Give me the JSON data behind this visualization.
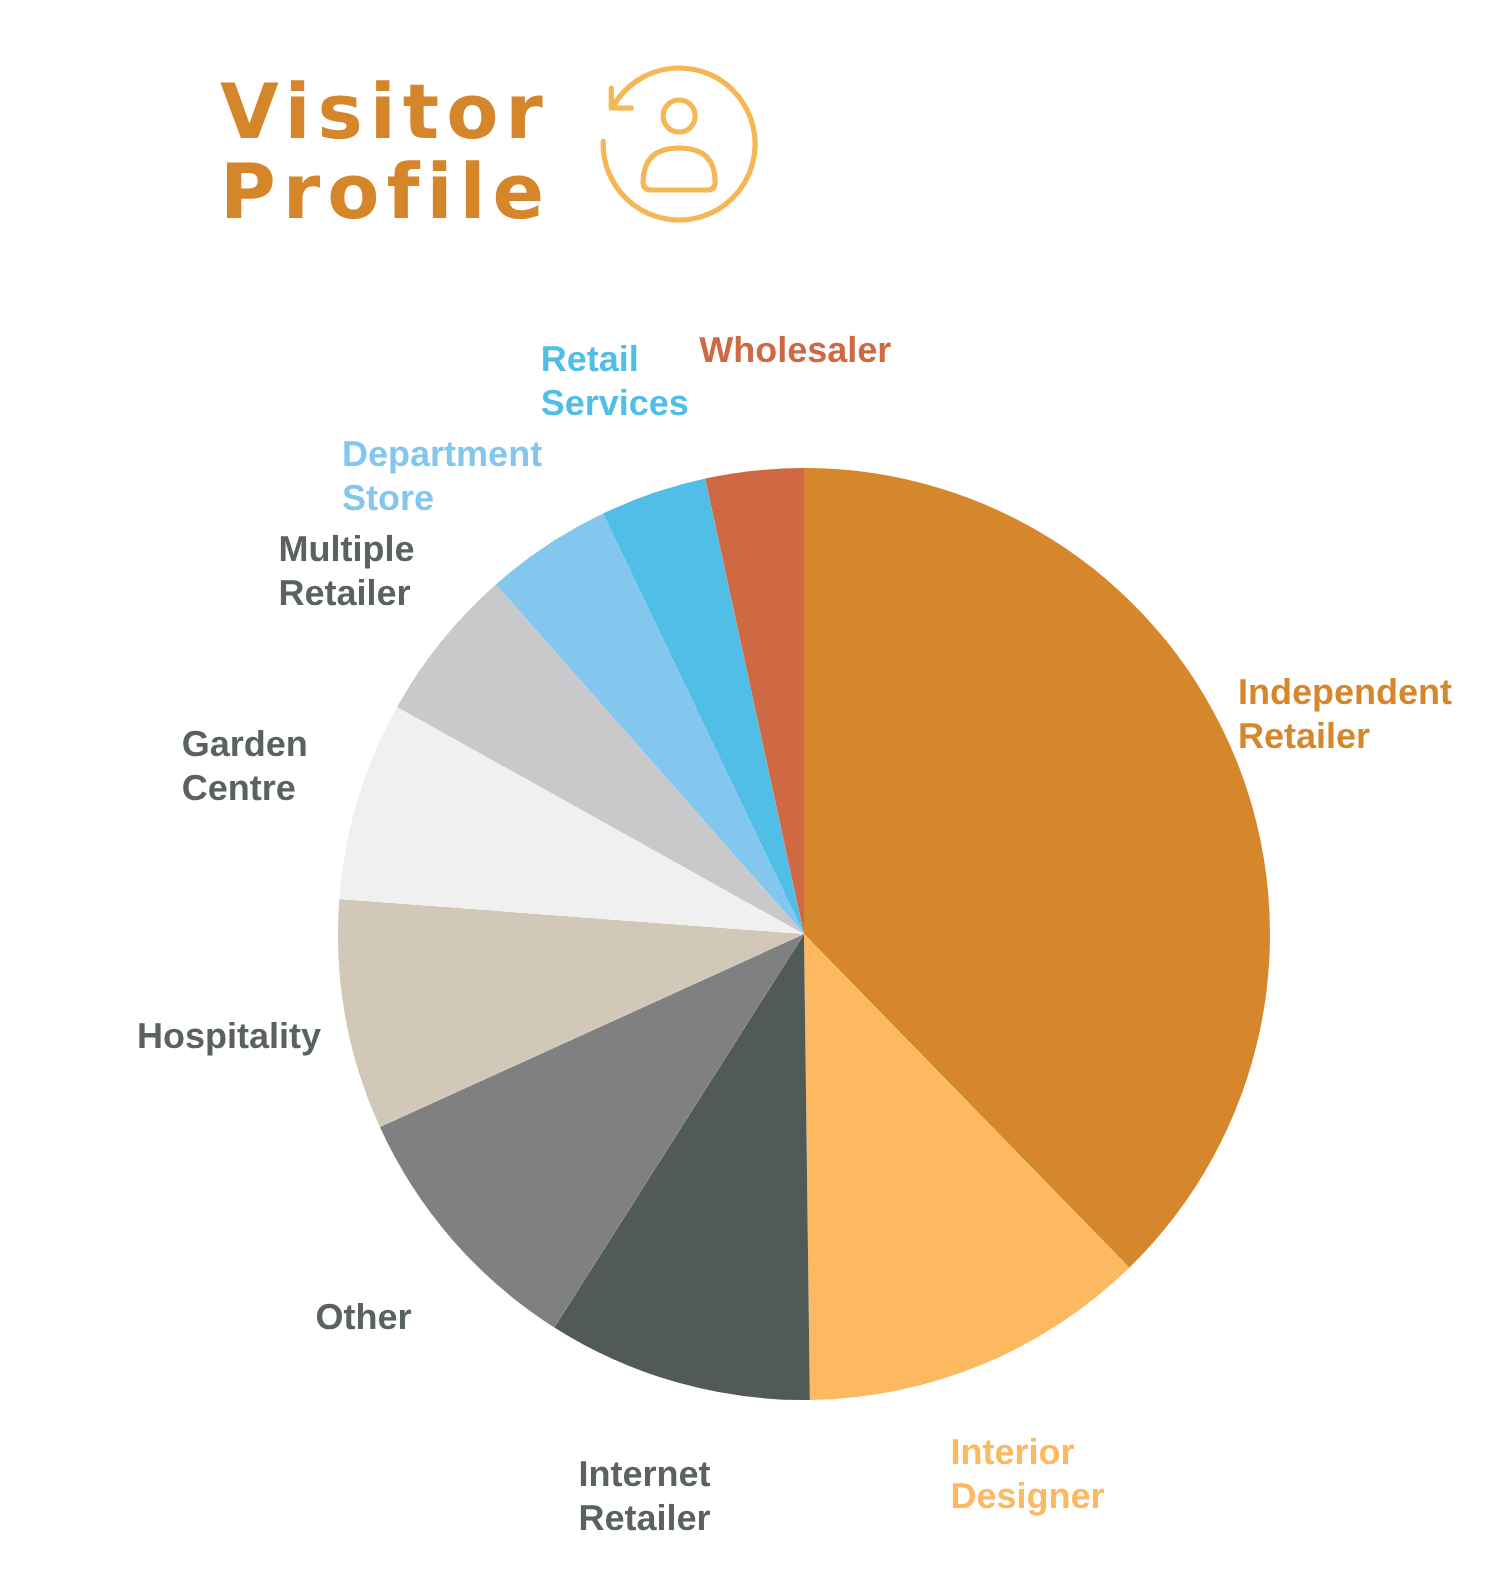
{
  "chart_data": {
    "type": "pie",
    "title": "Visitor Profile",
    "categories": [
      "Independent Retailer",
      "Interior Designer",
      "Internet Retailer",
      "Other",
      "Hospitality",
      "Garden Centre",
      "Multiple Retailer",
      "Department Store",
      "Retail Services",
      "Wholesaler"
    ],
    "values": [
      37.7,
      12.1,
      9.2,
      9.2,
      8.0,
      6.9,
      5.4,
      4.4,
      3.7,
      3.4
    ],
    "colors": [
      "#d6872c",
      "#fdb95f",
      "#525a58",
      "#808082",
      "#d2c8b7",
      "#f0f0f0",
      "#c9c9cb",
      "#84c7ee",
      "#50bee6",
      "#cf6943"
    ]
  }
}
